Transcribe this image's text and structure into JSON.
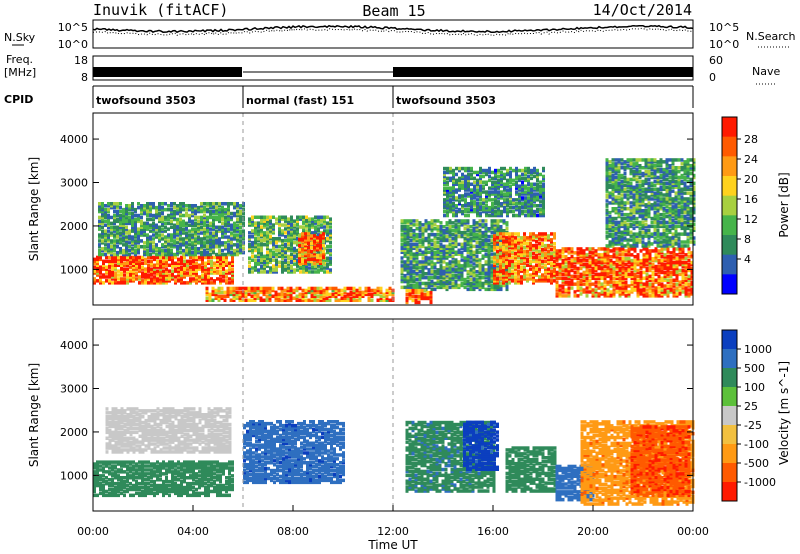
{
  "header": {
    "station": "Inuvik (fitACF)",
    "beam": "Beam 15",
    "date": "14/Oct/2014"
  },
  "noise_panel": {
    "left_label": "N.Sky",
    "left_ticks": [
      "10^5",
      "10^0"
    ],
    "right_label": "N.Search",
    "right_ticks": [
      "10^5",
      "10^0"
    ],
    "line_color": "#000000"
  },
  "freq_panel": {
    "left_label_line1": "Freq.",
    "left_label_line2": "[MHz]",
    "left_ticks": [
      "18",
      "8"
    ],
    "right_label": "Nave",
    "right_ticks": [
      "60",
      "0"
    ]
  },
  "cpid": {
    "label": "CPID",
    "segments": [
      {
        "label": "twofsound 3503",
        "start_hour": 0,
        "end_hour": 6
      },
      {
        "label": "normal (fast) 151",
        "start_hour": 6,
        "end_hour": 12
      },
      {
        "label": "twofsound 3503",
        "start_hour": 12,
        "end_hour": 24
      }
    ]
  },
  "chart_data": [
    {
      "type": "heatmap",
      "panel": "power",
      "ylabel": "Slant Range [km]",
      "yticks": [
        1000,
        2000,
        3000,
        4000
      ],
      "ylim": [
        180,
        4600
      ],
      "xlim_hours": [
        0,
        24
      ],
      "colorbar": {
        "label": "Power [dB]",
        "range": [
          0,
          32
        ],
        "ticks": [
          "28",
          "24",
          "20",
          "16",
          "12",
          "8",
          "4"
        ],
        "colors": [
          "#0000ff",
          "#2e5fb0",
          "#2f8a5a",
          "#46b44a",
          "#a8d040",
          "#ffd21e",
          "#ff9a14",
          "#ff5a00",
          "#ff1a00"
        ]
      },
      "regions": [
        {
          "t0": 0.0,
          "t1": 5.6,
          "r0": 650,
          "r1": 1250,
          "value": 28
        },
        {
          "t0": 0.2,
          "t1": 6.0,
          "r0": 1300,
          "r1": 2500,
          "value": 10
        },
        {
          "t0": 6.2,
          "t1": 9.5,
          "r0": 900,
          "r1": 2200,
          "value": 12
        },
        {
          "t0": 8.2,
          "t1": 9.2,
          "r0": 1100,
          "r1": 1800,
          "value": 26
        },
        {
          "t0": 4.5,
          "t1": 12.0,
          "r0": 250,
          "r1": 550,
          "value": 24
        },
        {
          "t0": 12.3,
          "t1": 16.5,
          "r0": 500,
          "r1": 2100,
          "value": 10
        },
        {
          "t0": 16.0,
          "t1": 18.5,
          "r0": 650,
          "r1": 1800,
          "value": 25
        },
        {
          "t0": 18.5,
          "t1": 24.0,
          "r0": 350,
          "r1": 1450,
          "value": 27
        },
        {
          "t0": 12.5,
          "t1": 13.5,
          "r0": 200,
          "r1": 500,
          "value": 29
        },
        {
          "t0": 20.5,
          "t1": 24.0,
          "r0": 1500,
          "r1": 3500,
          "value": 10
        },
        {
          "t0": 14.0,
          "t1": 18.0,
          "r0": 2200,
          "r1": 3300,
          "value": 9
        }
      ]
    },
    {
      "type": "heatmap",
      "panel": "velocity",
      "ylabel": "Slant Range [km]",
      "xlabel": "Time UT",
      "xticks": [
        "00:00",
        "04:00",
        "08:00",
        "12:00",
        "16:00",
        "20:00",
        "00:00"
      ],
      "yticks": [
        1000,
        2000,
        3000,
        4000
      ],
      "ylim": [
        180,
        4600
      ],
      "xlim_hours": [
        0,
        24
      ],
      "colorbar": {
        "label": "Velocity [m s^-1]",
        "ticks": [
          "1000",
          "500",
          "100",
          "25",
          "-25",
          "-100",
          "-500",
          "-1000"
        ],
        "colors": [
          "#0b3fbf",
          "#2e6fc0",
          "#2f8a5a",
          "#5cc03a",
          "#c8c8c8",
          "#f2c040",
          "#ff9a14",
          "#ff5a00",
          "#ff1a00"
        ]
      },
      "regions": [
        {
          "t0": 0.0,
          "t1": 5.6,
          "r0": 500,
          "r1": 1300,
          "value": 60
        },
        {
          "t0": 0.5,
          "t1": 5.5,
          "r0": 1500,
          "r1": 2500,
          "value": 0
        },
        {
          "t0": 6.0,
          "t1": 10.0,
          "r0": 800,
          "r1": 2200,
          "value": 400
        },
        {
          "t0": 12.5,
          "t1": 16.0,
          "r0": 600,
          "r1": 2200,
          "value": 80
        },
        {
          "t0": 14.8,
          "t1": 16.2,
          "r0": 1100,
          "r1": 2200,
          "value": 700
        },
        {
          "t0": 16.5,
          "t1": 18.5,
          "r0": 600,
          "r1": 1600,
          "value": 40
        },
        {
          "t0": 18.5,
          "t1": 20.0,
          "r0": 400,
          "r1": 1200,
          "value": 300
        },
        {
          "t0": 19.5,
          "t1": 24.0,
          "r0": 300,
          "r1": 2200,
          "value": -400
        },
        {
          "t0": 21.5,
          "t1": 23.8,
          "r0": 500,
          "r1": 2100,
          "value": -900
        }
      ]
    }
  ]
}
